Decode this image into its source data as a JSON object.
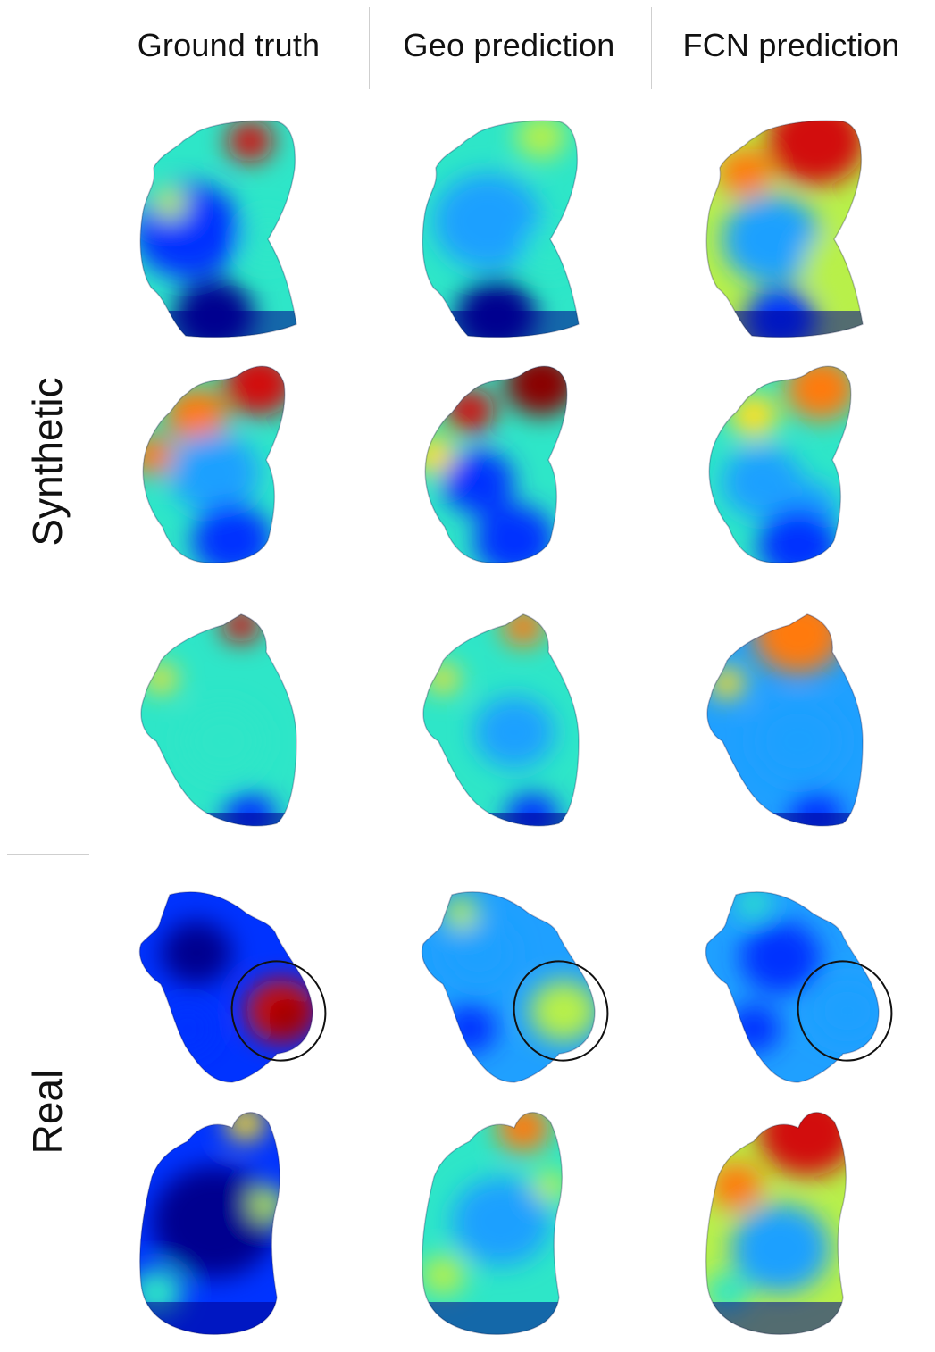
{
  "columns": [
    "Ground truth",
    "Geo prediction",
    "FCN prediction"
  ],
  "groups": [
    {
      "label": "Synthetic",
      "rows": 3
    },
    {
      "label": "Real",
      "rows": 2
    }
  ],
  "colormap": {
    "name": "jet",
    "stops": [
      "#00008f",
      "#0033ff",
      "#1fa0ff",
      "#2ee6c8",
      "#b8f04a",
      "#ffe020",
      "#ff7a10",
      "#d21010",
      "#8a0000"
    ]
  },
  "annotation": {
    "type": "circle",
    "rows": [
      3
    ],
    "color": "#111111"
  }
}
